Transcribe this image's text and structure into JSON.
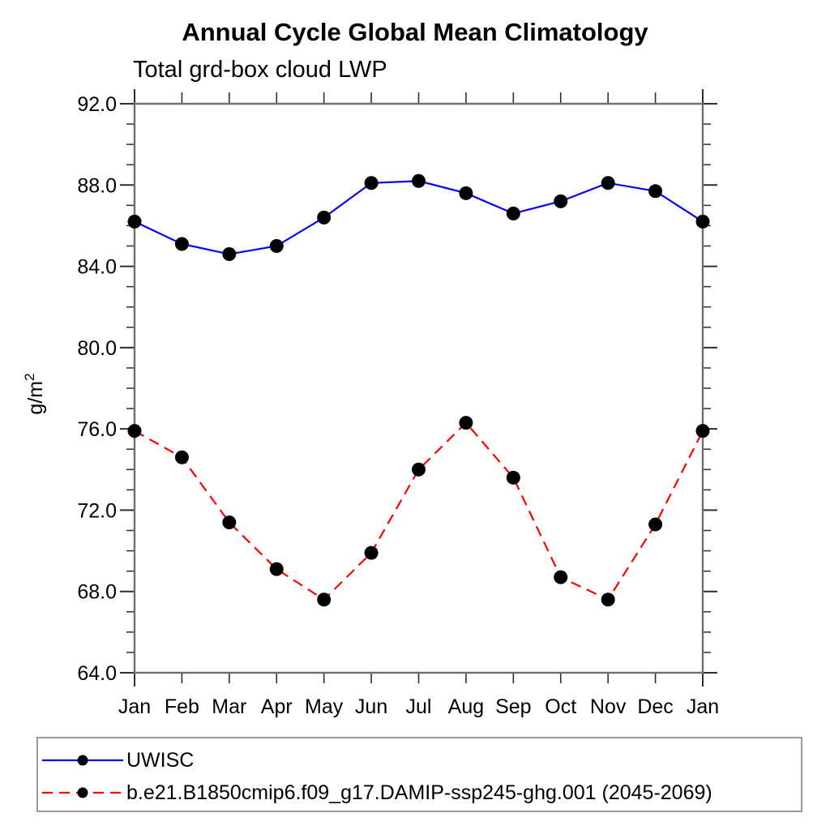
{
  "chart_data": {
    "type": "line",
    "title": "Annual Cycle Global Mean Climatology",
    "subtitle": "Total grd-box cloud LWP",
    "ylabel": "g/m²",
    "xlabel": "",
    "categories": [
      "Jan",
      "Feb",
      "Mar",
      "Apr",
      "May",
      "Jun",
      "Jul",
      "Aug",
      "Sep",
      "Oct",
      "Nov",
      "Dec",
      "Jan"
    ],
    "ylim": [
      64.0,
      92.0
    ],
    "ytick_interval": 4.0,
    "ytick_minor_interval": 1.0,
    "ytick_labels": [
      "64.0",
      "68.0",
      "72.0",
      "76.0",
      "80.0",
      "84.0",
      "88.0",
      "92.0"
    ],
    "grid": false,
    "legend_position": "bottom-left-box",
    "series": [
      {
        "name": "UWISC",
        "color": "#0000ff",
        "line_style": "solid",
        "marker": "filled-circle",
        "marker_color": "#000000",
        "values": [
          86.2,
          85.1,
          84.6,
          85.0,
          86.4,
          88.1,
          88.2,
          87.6,
          86.6,
          87.2,
          88.1,
          87.7,
          86.2
        ]
      },
      {
        "name": "b.e21.B1850cmip6.f09_g17.DAMIP-ssp245-ghg.001 (2045-2069)",
        "color": "#ff0000",
        "line_style": "dashed",
        "marker": "filled-circle",
        "marker_color": "#000000",
        "values": [
          75.9,
          74.6,
          71.4,
          69.1,
          67.6,
          69.9,
          74.0,
          76.3,
          73.6,
          68.7,
          67.6,
          71.3,
          75.9
        ]
      }
    ]
  }
}
